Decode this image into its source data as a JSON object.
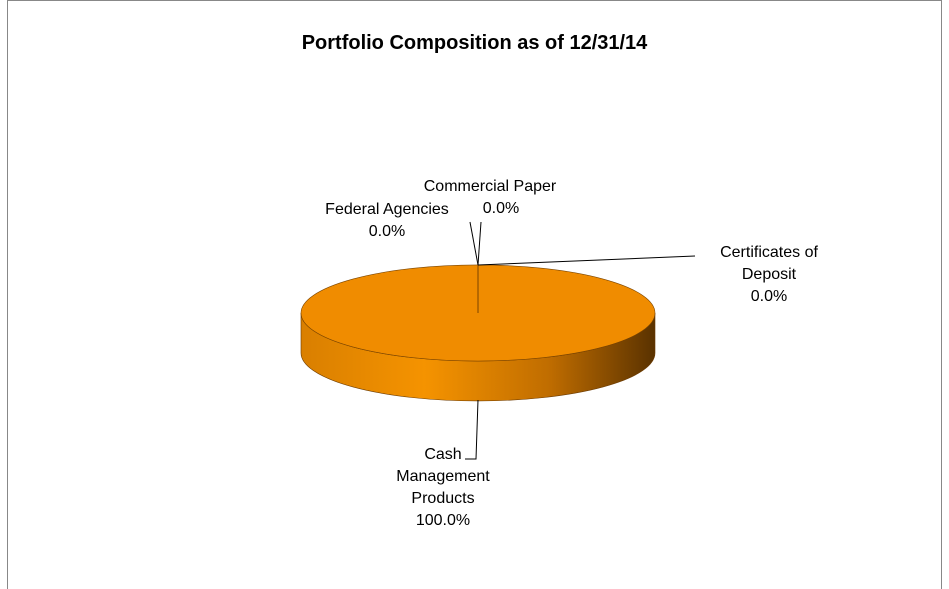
{
  "chart_data": {
    "type": "pie",
    "title": "Portfolio Composition as of 12/31/14",
    "categories": [
      "Federal Agencies",
      "Commercial Paper",
      "Certificates of Deposit",
      "Cash Management Products"
    ],
    "values": [
      0,
      0,
      0,
      100
    ],
    "value_labels": [
      "0.0%",
      "0.0%",
      "0.0%",
      "100.0%"
    ],
    "colors": [
      "#f08c00",
      "#f08c00",
      "#f08c00",
      "#f08c00"
    ]
  }
}
